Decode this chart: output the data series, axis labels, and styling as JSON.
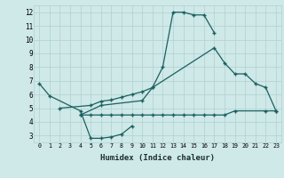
{
  "xlabel": "Humidex (Indice chaleur)",
  "xlim": [
    -0.5,
    23.5
  ],
  "ylim": [
    2.5,
    12.5
  ],
  "yticks": [
    3,
    4,
    5,
    6,
    7,
    8,
    9,
    10,
    11,
    12
  ],
  "xticks": [
    0,
    1,
    2,
    3,
    4,
    5,
    6,
    7,
    8,
    9,
    10,
    11,
    12,
    13,
    14,
    15,
    16,
    17,
    18,
    19,
    20,
    21,
    22,
    23
  ],
  "bg_color": "#cfe8e8",
  "grid_color": "#b0d0d0",
  "line_color": "#1a6060",
  "line1_x": [
    0,
    1,
    4,
    5,
    6,
    7,
    8,
    9
  ],
  "line1_y": [
    6.8,
    5.9,
    4.8,
    2.8,
    2.8,
    2.9,
    3.1,
    3.7
  ],
  "line2_x": [
    4,
    6,
    10,
    11,
    12,
    13,
    14,
    15,
    16,
    17
  ],
  "line2_y": [
    4.5,
    5.2,
    5.55,
    6.5,
    8.0,
    12.0,
    12.0,
    11.8,
    11.8,
    10.5
  ],
  "line3_x": [
    2,
    5,
    6,
    7,
    8,
    9,
    10,
    11,
    17,
    18,
    19,
    20,
    21,
    22,
    23
  ],
  "line3_y": [
    5.0,
    5.2,
    5.5,
    5.6,
    5.8,
    6.0,
    6.2,
    6.5,
    9.4,
    8.3,
    7.5,
    7.5,
    6.8,
    6.5,
    4.8
  ],
  "line4_x": [
    4,
    5,
    6,
    7,
    8,
    9,
    10,
    11,
    12,
    13,
    14,
    15,
    16,
    17,
    18,
    19,
    22,
    23
  ],
  "line4_y": [
    4.5,
    4.5,
    4.5,
    4.5,
    4.5,
    4.5,
    4.5,
    4.5,
    4.5,
    4.5,
    4.5,
    4.5,
    4.5,
    4.5,
    4.5,
    4.8,
    4.8,
    4.8
  ]
}
